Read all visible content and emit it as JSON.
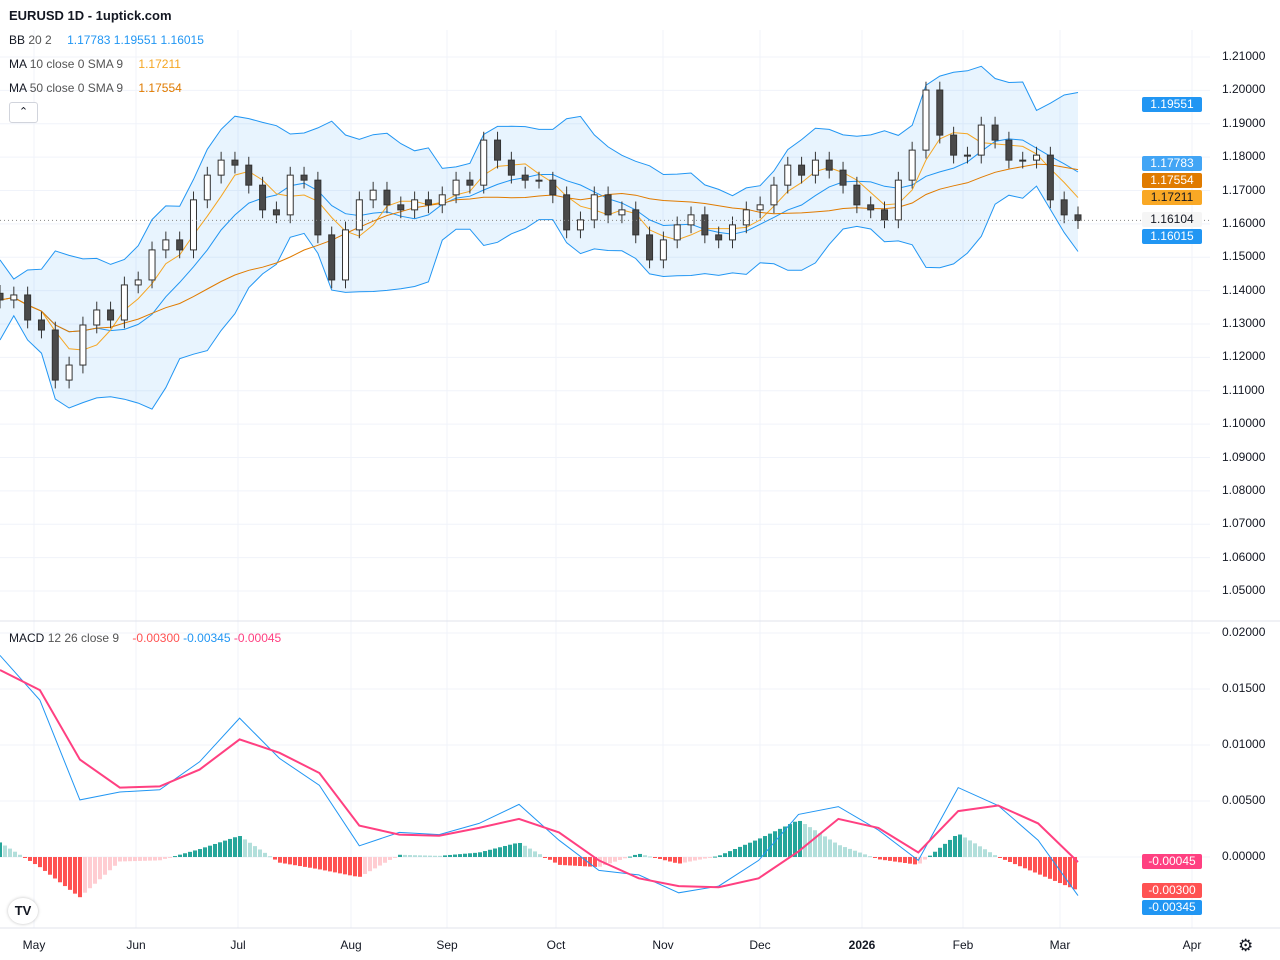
{
  "header": {
    "title": "EURUSD 1D - 1uptick.com"
  },
  "legend": {
    "bb": {
      "label": "BB",
      "params": "20 2",
      "values": [
        "1.17783",
        "1.19551",
        "1.16015"
      ]
    },
    "ma10": {
      "label": "MA",
      "params": "10 close 0 SMA 9",
      "value": "1.17211"
    },
    "ma50": {
      "label": "MA",
      "params": "50 close 0 SMA 9",
      "value": "1.17554"
    },
    "macd": {
      "label": "MACD",
      "params": "12 26 close 9",
      "values": [
        "-0.00300",
        "-0.00345",
        "-0.00045"
      ]
    },
    "collapse_icon": "chevron-up-icon"
  },
  "price_tags": [
    {
      "value": "1.19551",
      "color": "#2196f3",
      "price": 1.19551
    },
    {
      "value": "1.17783",
      "color": "#42a5f5",
      "price": 1.17783
    },
    {
      "value": "1.17554",
      "color": "#e07b00",
      "price": 1.17554
    },
    {
      "value": "1.17211",
      "color": "#f9a825",
      "price": 1.17211
    },
    {
      "value": "1.16104",
      "color": "#f5f5f5",
      "price": 1.16104
    },
    {
      "value": "1.16015",
      "color": "#2196f3",
      "price": 1.16015
    }
  ],
  "macd_tags": [
    {
      "value": "-0.00045",
      "color": "#ff4081",
      "v": -0.00045
    },
    {
      "value": "-0.00300",
      "color": "#ff5252",
      "v": -0.003
    },
    {
      "value": "-0.00345",
      "color": "#2196f3",
      "v": -0.00345
    }
  ],
  "colors": {
    "bb": "#2196f3",
    "ma10": "#f5a623",
    "ma50": "#e07b00",
    "macd": "#2196f3",
    "signal": "#ff4081",
    "hist_up": "#26a69a",
    "hist_down": "#ff5252"
  },
  "chart_data": [
    {
      "type": "candlestick",
      "symbol": "EURUSD",
      "interval": "1D",
      "x_range": [
        "2025-04-21",
        "2026-03-06"
      ],
      "ylim": [
        1.045,
        1.215
      ],
      "y_ticks": [
        "1.21000",
        "1.20000",
        "1.19000",
        "1.18000",
        "1.17000",
        "1.16000",
        "1.15000",
        "1.14000",
        "1.13000",
        "1.12000",
        "1.11000",
        "1.10000",
        "1.09000",
        "1.08000",
        "1.07000",
        "1.06000",
        "1.05000"
      ],
      "x_ticks": [
        "May",
        "Jun",
        "Jul",
        "Aug",
        "Sep",
        "Oct",
        "Nov",
        "Dec",
        "2026",
        "Feb",
        "Mar",
        "Apr"
      ],
      "closes": [
        1.1372,
        1.1387,
        1.1312,
        1.1282,
        1.1132,
        1.1177,
        1.1297,
        1.1342,
        1.1312,
        1.1417,
        1.1432,
        1.1522,
        1.1552,
        1.1522,
        1.1672,
        1.1746,
        1.1791,
        1.1776,
        1.1716,
        1.1642,
        1.1627,
        1.1746,
        1.1731,
        1.1567,
        1.1432,
        1.1582,
        1.1672,
        1.1701,
        1.1657,
        1.1642,
        1.1672,
        1.1657,
        1.1687,
        1.1731,
        1.1716,
        1.1851,
        1.1791,
        1.1746,
        1.1731,
        1.1731,
        1.1687,
        1.1582,
        1.1612,
        1.1687,
        1.1627,
        1.1642,
        1.1567,
        1.1492,
        1.1552,
        1.1597,
        1.1627,
        1.1567,
        1.1552,
        1.1597,
        1.1642,
        1.1657,
        1.1716,
        1.1776,
        1.1746,
        1.1791,
        1.1761,
        1.1716,
        1.1657,
        1.1642,
        1.1612,
        1.1731,
        1.1821,
        1.2001,
        1.1866,
        1.1806,
        1.1806,
        1.1896,
        1.1851,
        1.1791,
        1.1791,
        1.1806,
        1.1672,
        1.1627,
        1.161
      ],
      "last_price": 1.16104,
      "indicators": [
        "BB 20 2",
        "MA 10",
        "MA 50"
      ]
    },
    {
      "type": "line",
      "name": "MACD 12 26 close 9",
      "x_range": [
        "2025-04-21",
        "2026-03-06"
      ],
      "ylim": [
        -0.0055,
        0.021
      ],
      "y_ticks": [
        "0.02000",
        "0.01500",
        "0.01000",
        "0.00500",
        "0.00000"
      ],
      "series": [
        {
          "name": "MACD",
          "values": [
            0.018,
            0.014,
            0.0051,
            0.0058,
            0.006,
            0.0085,
            0.0124,
            0.0088,
            0.0064,
            0.001,
            0.0022,
            0.002,
            0.003,
            0.0047,
            0.0015,
            -0.0012,
            -0.0016,
            -0.0032,
            -0.0026,
            -0.0003,
            0.0038,
            0.0045,
            0.0024,
            -0.0003,
            0.0062,
            0.0046,
            0.0015,
            -0.00345
          ]
        },
        {
          "name": "Signal",
          "values": [
            0.0167,
            0.0149,
            0.0087,
            0.0062,
            0.0063,
            0.0078,
            0.0105,
            0.0093,
            0.0075,
            0.0028,
            0.002,
            0.0019,
            0.0026,
            0.0034,
            0.0022,
            -0.0003,
            -0.0019,
            -0.0026,
            -0.0027,
            -0.0019,
            0.0005,
            0.0034,
            0.0026,
            0.0004,
            0.0041,
            0.0046,
            0.003,
            -0.00045
          ]
        }
      ]
    }
  ]
}
